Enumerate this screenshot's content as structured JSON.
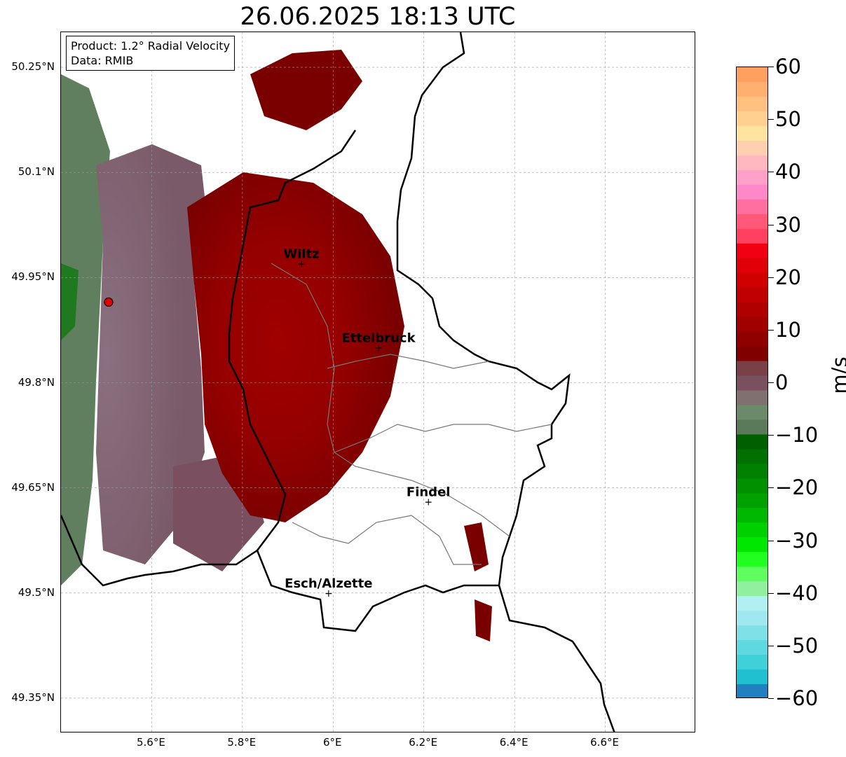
{
  "title": "26.06.2025 18:13 UTC",
  "info_box": {
    "product_line": "Product: 1.2° Radial Velocity",
    "data_line": "Data: RMIB"
  },
  "map": {
    "lat_labels": [
      "50.25°N",
      "50.1°N",
      "49.95°N",
      "49.8°N",
      "49.65°N",
      "49.5°N",
      "49.35°N"
    ],
    "lon_labels": [
      "5.6°E",
      "5.8°E",
      "6°E",
      "6.2°E",
      "6.4°E",
      "6.6°E"
    ],
    "lat_range": [
      49.3,
      50.3
    ],
    "lon_range": [
      5.4,
      6.8
    ],
    "radar_site": {
      "lat": 49.915,
      "lon": 5.505,
      "color": "#e00000"
    },
    "cities": [
      {
        "name": "Wiltz",
        "lat": 49.97,
        "lon": 5.93
      },
      {
        "name": "Ettelbruck",
        "lat": 49.85,
        "lon": 6.1
      },
      {
        "name": "Findel",
        "lat": 49.63,
        "lon": 6.21
      },
      {
        "name": "Esch/Alzette",
        "lat": 49.5,
        "lon": 5.99
      }
    ]
  },
  "colorbar": {
    "unit": "m/s",
    "min": -60,
    "max": 60,
    "ticks": [
      "60",
      "50",
      "40",
      "30",
      "20",
      "10",
      "0",
      "−10",
      "−20",
      "−30",
      "−40",
      "−50",
      "−60"
    ],
    "colors": [
      "#ffa060",
      "#ffb070",
      "#ffc080",
      "#ffd090",
      "#ffe4a0",
      "#ffd0b0",
      "#ffb8c0",
      "#ffa0c8",
      "#ff88c8",
      "#ff70a0",
      "#ff5878",
      "#ff4060",
      "#f00010",
      "#e00008",
      "#d00000",
      "#c00000",
      "#b00000",
      "#a00000",
      "#900000",
      "#800000",
      "#7a4048",
      "#7a5060",
      "#807070",
      "#6a8a6a",
      "#5a7a5a",
      "#006000",
      "#007000",
      "#008000",
      "#009000",
      "#00a000",
      "#00b800",
      "#00d000",
      "#00e800",
      "#20ff20",
      "#60ff60",
      "#90f0a0",
      "#b0f0f0",
      "#a0e8f0",
      "#80e0e8",
      "#60d8e0",
      "#40d0d8",
      "#20c0d0",
      "#2080c0"
    ]
  }
}
